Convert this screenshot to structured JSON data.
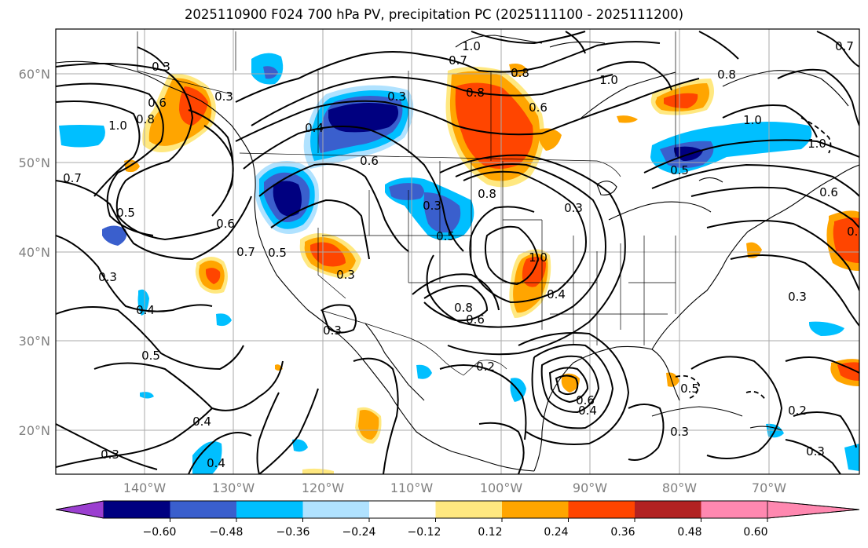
{
  "title": "2025110900 F024 700 hPa PV, precipitation PC (2025111100 - 2025111200)",
  "lat_labels": [
    "60°N",
    "50°N",
    "40°N",
    "30°N",
    "20°N"
  ],
  "lon_labels": [
    "140°W",
    "130°W",
    "120°W",
    "110°W",
    "100°W",
    "90°W",
    "80°W",
    "70°W"
  ],
  "colorbar": {
    "colors": [
      "#9b3fd0",
      "#000080",
      "#3a5fcd",
      "#00bfff",
      "#b0e2ff",
      "#ffffff",
      "#ffe880",
      "#ffa500",
      "#ff4500",
      "#b22222",
      "#ff88b0"
    ],
    "ticks": [
      "−0.60",
      "−0.48",
      "−0.36",
      "−0.24",
      "−0.12",
      "0.12",
      "0.24",
      "0.36",
      "0.48",
      "0.60"
    ]
  },
  "contour_labels": [
    "1.0",
    "0.3",
    "0.7",
    "0.8",
    "1.0",
    "0.8",
    "1.0",
    "0.7",
    "0.6",
    "0.8",
    "0.3",
    "0.3",
    "0.6",
    "1.0",
    "0.4",
    "0.6",
    "0.8",
    "0.5",
    "1.0",
    "0.7",
    "0.5",
    "0.6",
    "0.7",
    "0.5",
    "0.3",
    "0.3",
    "0.5",
    "0.8",
    "0.3",
    "0.8",
    "1.0",
    "0.6",
    "0.3",
    "0.4",
    "0.8",
    "0.6",
    "0.4",
    "0.3",
    "0.2",
    "0.5",
    "0.6",
    "0.4",
    "0.3",
    "0.4",
    "0.4",
    "0.3",
    "0.2",
    "0.3",
    "0.3",
    "0.5"
  ]
}
